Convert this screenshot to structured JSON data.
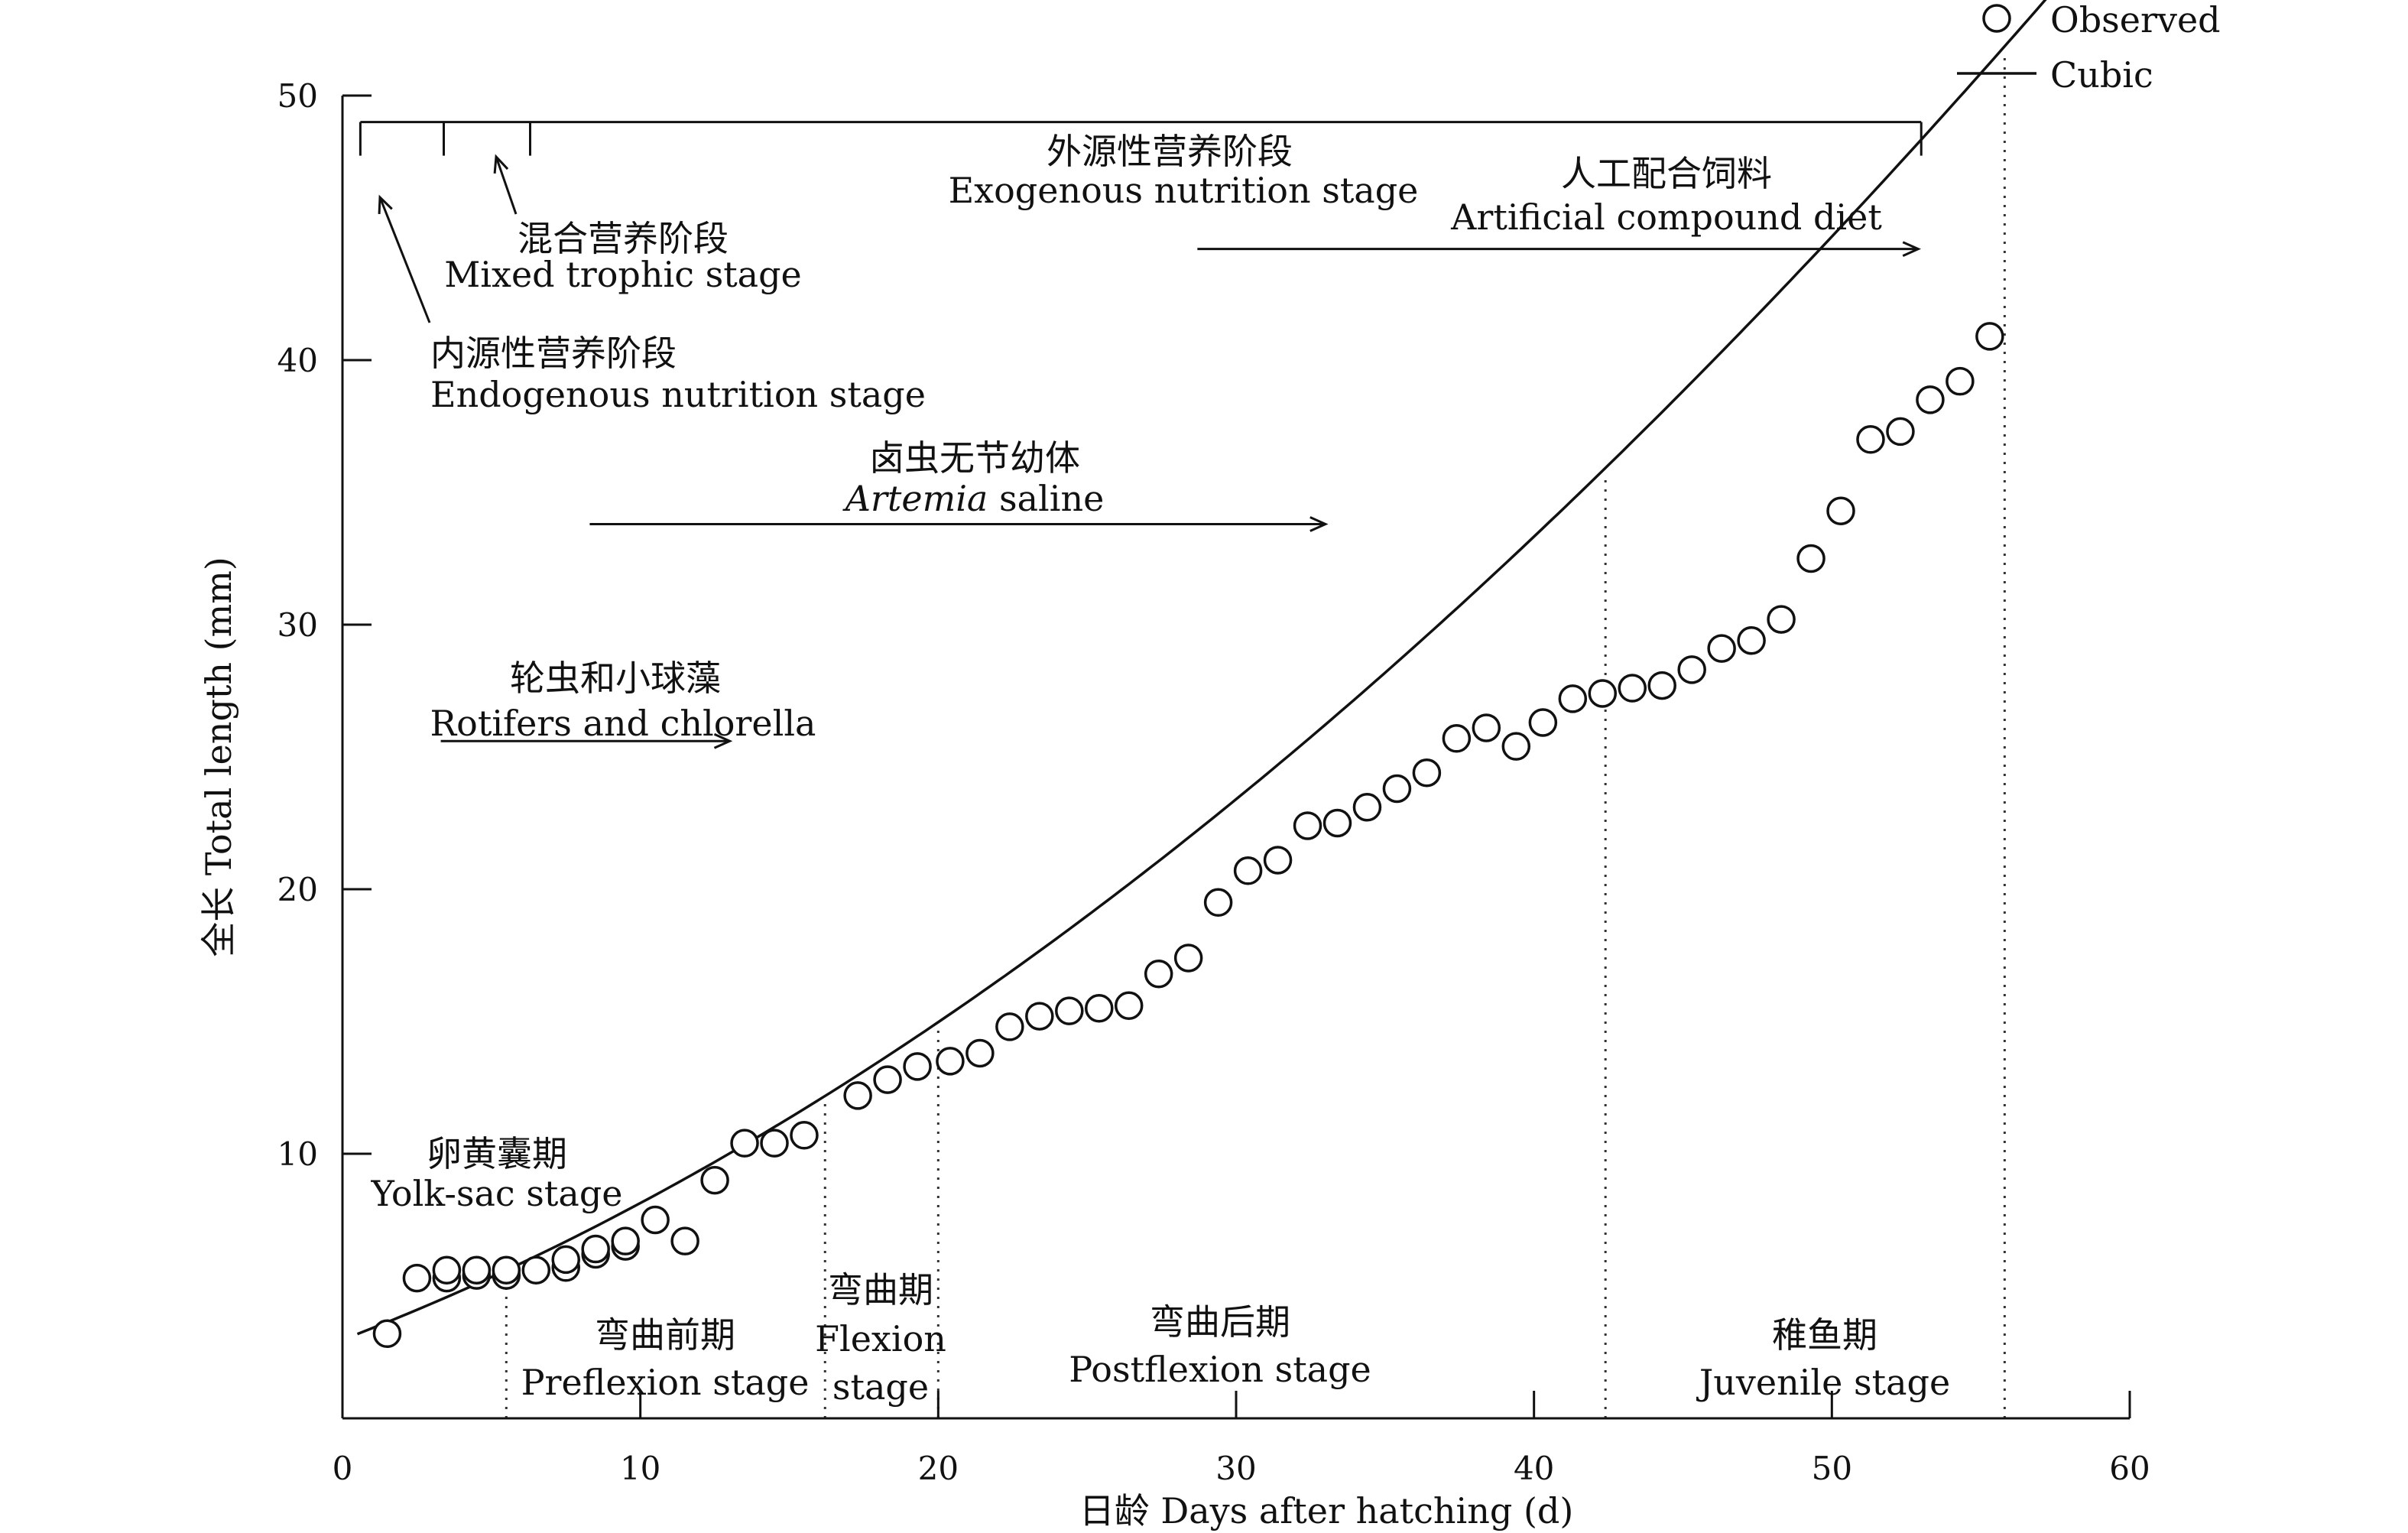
{
  "chart_data": {
    "type": "scatter",
    "xlabel": "日龄 Days after hatching (d)",
    "ylabel": "全长 Total length (mm)",
    "xlim": [
      0,
      60
    ],
    "ylim": [
      0,
      50
    ],
    "x_ticks": [
      0,
      10,
      20,
      30,
      40,
      50,
      60
    ],
    "y_ticks": [
      10,
      20,
      30,
      40,
      50
    ],
    "legend": {
      "position": "top-right",
      "entries": [
        {
          "label": "Observed",
          "marker": "circle"
        },
        {
          "label": "Cubic",
          "marker": "line"
        }
      ]
    },
    "series": [
      {
        "name": "Observed",
        "points": [
          [
            1.5,
            3.2
          ],
          [
            2.5,
            5.3
          ],
          [
            3.5,
            5.3
          ],
          [
            3.5,
            5.6
          ],
          [
            4.5,
            5.4
          ],
          [
            4.5,
            5.6
          ],
          [
            5.5,
            5.4
          ],
          [
            5.5,
            5.6
          ],
          [
            6.5,
            5.6
          ],
          [
            7.5,
            5.7
          ],
          [
            7.5,
            6.0
          ],
          [
            8.5,
            6.2
          ],
          [
            8.5,
            6.4
          ],
          [
            9.5,
            6.5
          ],
          [
            9.5,
            6.7
          ],
          [
            10.5,
            7.5
          ],
          [
            11.5,
            6.7
          ],
          [
            12.5,
            9.0
          ],
          [
            13.5,
            10.4
          ],
          [
            14.5,
            10.4
          ],
          [
            15.5,
            10.7
          ],
          [
            17.3,
            12.2
          ],
          [
            18.3,
            12.8
          ],
          [
            19.3,
            13.3
          ],
          [
            20.4,
            13.5
          ],
          [
            21.4,
            13.8
          ],
          [
            22.4,
            14.8
          ],
          [
            23.4,
            15.2
          ],
          [
            24.4,
            15.4
          ],
          [
            25.4,
            15.5
          ],
          [
            26.4,
            15.6
          ],
          [
            27.4,
            16.8
          ],
          [
            28.4,
            17.4
          ],
          [
            29.4,
            19.5
          ],
          [
            30.4,
            20.7
          ],
          [
            31.4,
            21.1
          ],
          [
            32.4,
            22.4
          ],
          [
            33.4,
            22.5
          ],
          [
            34.4,
            23.1
          ],
          [
            35.4,
            23.8
          ],
          [
            36.4,
            24.4
          ],
          [
            37.4,
            25.7
          ],
          [
            38.4,
            26.1
          ],
          [
            39.4,
            25.4
          ],
          [
            40.3,
            26.3
          ],
          [
            41.3,
            27.2
          ],
          [
            42.3,
            27.4
          ],
          [
            43.3,
            27.6
          ],
          [
            44.3,
            27.7
          ],
          [
            45.3,
            28.3
          ],
          [
            46.3,
            29.1
          ],
          [
            47.3,
            29.4
          ],
          [
            48.3,
            30.2
          ],
          [
            49.3,
            32.5
          ],
          [
            50.3,
            34.3
          ],
          [
            51.3,
            37.0
          ],
          [
            52.3,
            37.3
          ],
          [
            53.3,
            38.5
          ],
          [
            54.3,
            39.2
          ],
          [
            55.3,
            40.9
          ]
        ]
      },
      {
        "name": "Cubic",
        "fit": "cubic",
        "coefficients": [
          2.97,
          0.43,
          0.0088,
          -1.44e-05
        ],
        "x_range": [
          0.5,
          59.1
        ]
      }
    ],
    "stage_boundaries": [
      5.5,
      16.2,
      20.0,
      42.4,
      55.8
    ],
    "stage_labels": [
      {
        "cn": "卵黄囊期",
        "en": "Yolk-sac stage"
      },
      {
        "cn": "弯曲前期",
        "en": "Preflexion stage"
      },
      {
        "cn": "弯曲期",
        "en": "Flexion",
        "en2": "stage"
      },
      {
        "cn": "弯曲后期",
        "en": "Postflexion stage"
      },
      {
        "cn": "稚鱼期",
        "en": "Juvenile stage"
      }
    ],
    "nutrition": {
      "bracket_y": 49,
      "bracket_x": [
        0.6,
        53.0
      ],
      "bracket_dividers": [
        3.4,
        6.3
      ],
      "endogenous": {
        "cn": "内源性营养阶段",
        "en": "Endogenous nutrition stage"
      },
      "mixed": {
        "cn": "混合营养阶段",
        "en": "Mixed trophic stage"
      },
      "exogenous": {
        "cn": "外源性营养阶段",
        "en": "Exogenous nutrition stage"
      }
    },
    "diets": [
      {
        "cn": "轮虫和小球藻",
        "en": "Rotifers and chlorella",
        "x_range": [
          3.3,
          13.0
        ],
        "y": 25.6
      },
      {
        "cn": "卤虫无节幼体",
        "en_italic": "Artemia",
        "en_rest": " saline",
        "x_range": [
          8.3,
          33.0
        ],
        "y": 33.8
      },
      {
        "cn": "人工配合饲料",
        "en": "Artificial compound diet",
        "x_range": [
          28.7,
          52.9
        ],
        "y": 44.2
      }
    ]
  }
}
